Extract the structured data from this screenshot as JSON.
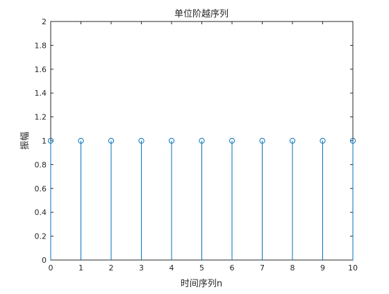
{
  "chart_data": {
    "type": "stem",
    "title": "单位阶越序列",
    "xlabel": "时间序列n",
    "ylabel": "振幅",
    "x": [
      0,
      1,
      2,
      3,
      4,
      5,
      6,
      7,
      8,
      9,
      10
    ],
    "y": [
      1,
      1,
      1,
      1,
      1,
      1,
      1,
      1,
      1,
      1,
      1
    ],
    "xlim": [
      0,
      10
    ],
    "ylim": [
      0,
      2
    ],
    "xticks": [
      "0",
      "1",
      "2",
      "3",
      "4",
      "5",
      "6",
      "7",
      "8",
      "9",
      "10"
    ],
    "yticks": [
      "0",
      "0.2",
      "0.4",
      "0.6",
      "0.8",
      "1",
      "1.2",
      "1.4",
      "1.6",
      "1.8",
      "2"
    ],
    "marker": "circle",
    "grid": false,
    "color": "#0072BD"
  }
}
